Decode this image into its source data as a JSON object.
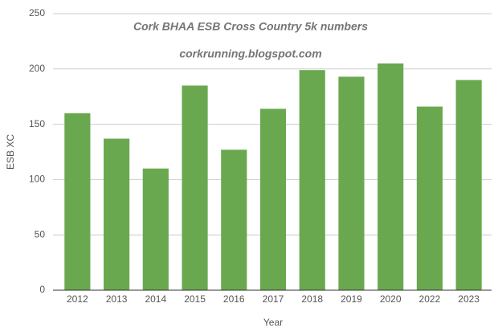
{
  "chart_data": {
    "type": "bar",
    "title": "Cork BHAA ESB Cross Country 5k numbers",
    "subtitle": "corkrunning.blogspot.com",
    "x_label": "Year",
    "y_label": "ESB XC",
    "categories": [
      "2012",
      "2013",
      "2014",
      "2015",
      "2016",
      "2017",
      "2018",
      "2019",
      "2020",
      "2022",
      "2023"
    ],
    "values": [
      160,
      137,
      110,
      185,
      127,
      164,
      199,
      193,
      205,
      166,
      190
    ],
    "color": "#6aa84f",
    "ylim": [
      0,
      250
    ],
    "yticks": [
      0,
      50,
      100,
      150,
      200,
      250
    ],
    "grid": true
  }
}
